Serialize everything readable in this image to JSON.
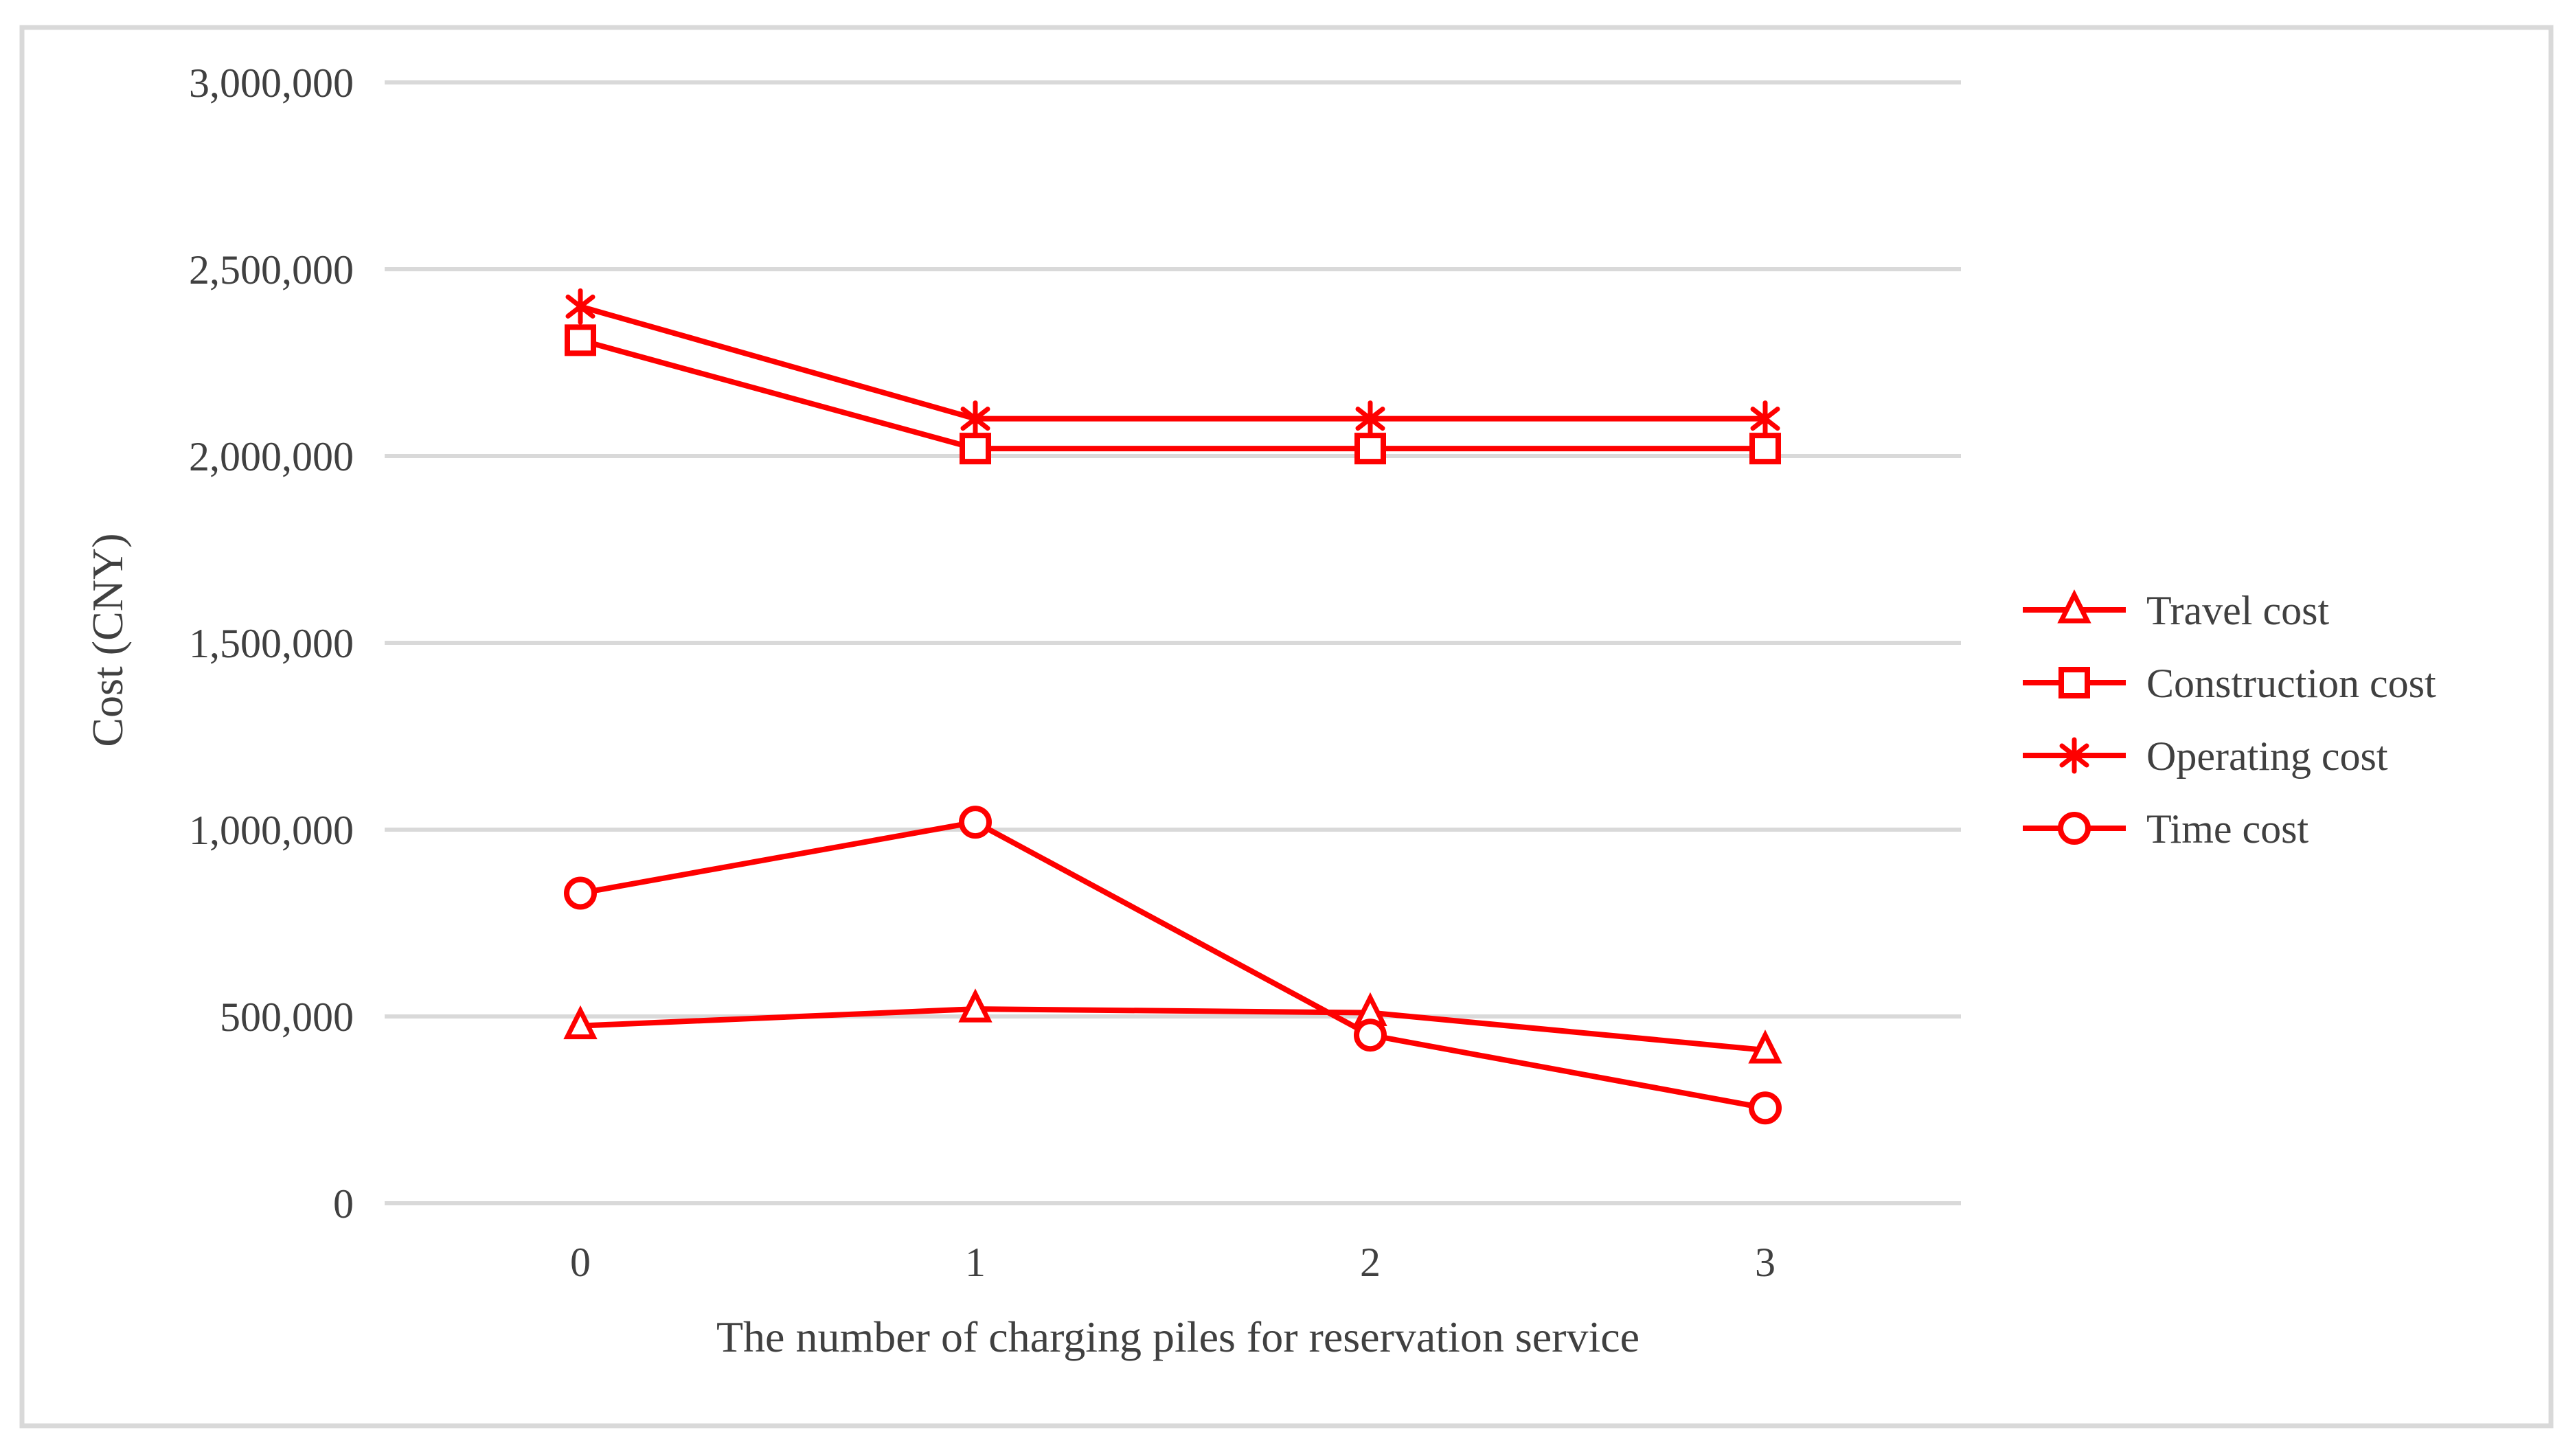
{
  "figure": {
    "background": "#ffffff",
    "border_color": "#d9d9d9"
  },
  "chart_data": {
    "type": "line",
    "title": "",
    "xlabel": "The number of charging piles for reservation service",
    "ylabel": "Cost (CNY)",
    "categories": [
      0,
      1,
      2,
      3
    ],
    "x_tick_labels": [
      "0",
      "1",
      "2",
      "3"
    ],
    "y_tick_values": [
      3000000,
      2500000,
      2000000,
      1500000,
      1000000,
      500000,
      0
    ],
    "y_tick_labels": [
      "3,000,000",
      "2,500,000",
      "2,000,000",
      "1,500,000",
      "1,000,000",
      "500,000",
      "0"
    ],
    "ylim": [
      0,
      3000000
    ],
    "grid": "horizontal-only",
    "legend_position": "right",
    "series": [
      {
        "name": "Travel cost",
        "marker": "triangle",
        "values": [
          475000,
          520000,
          510000,
          410000
        ]
      },
      {
        "name": "Construction cost",
        "marker": "square",
        "values": [
          2310000,
          2020000,
          2020000,
          2020000
        ]
      },
      {
        "name": "Operating cost",
        "marker": "asterisk",
        "values": [
          2400000,
          2100000,
          2100000,
          2100000
        ]
      },
      {
        "name": "Time cost",
        "marker": "circle",
        "values": [
          830000,
          1020000,
          450000,
          255000
        ]
      }
    ],
    "colors": {
      "series_line": "#fe0000",
      "gridline": "#d9d9d9",
      "text": "#404040",
      "frame_border": "#d9d9d9",
      "marker_fill": "#ffffff"
    }
  }
}
